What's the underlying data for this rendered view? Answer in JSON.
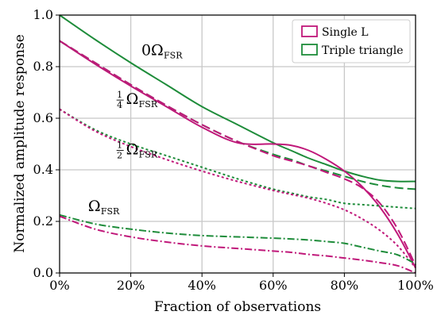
{
  "chart_data": {
    "type": "line",
    "xlabel": "Fraction of observations",
    "ylabel": "Normalized amplitude response",
    "xlim": [
      0,
      100
    ],
    "ylim": [
      0,
      1.0
    ],
    "x_tick_labels": [
      "0%",
      "20%",
      "40%",
      "60%",
      "80%",
      "100%"
    ],
    "x_ticks": [
      0,
      20,
      40,
      60,
      80,
      100
    ],
    "y_tick_labels": [
      "0.0",
      "0.2",
      "0.4",
      "0.6",
      "0.8",
      "1.0"
    ],
    "y_ticks": [
      0,
      0.2,
      0.4,
      0.6,
      0.8,
      1.0
    ],
    "grid": true,
    "legend_position": "top-right",
    "legend": [
      {
        "label": "Single L",
        "color": "#c0187a"
      },
      {
        "label": "Triple triangle",
        "color": "#1e8c3a"
      }
    ],
    "annotations": [
      {
        "prefix": "0",
        "omega": "Ω",
        "subscript": "FSR",
        "x": 23,
        "y": 0.845
      },
      {
        "frac_num": "1",
        "frac_den": "4",
        "omega": "Ω",
        "subscript": "FSR",
        "x": 16,
        "y": 0.655
      },
      {
        "frac_num": "1",
        "frac_den": "2",
        "omega": "Ω",
        "subscript": "FSR",
        "x": 16,
        "y": 0.46
      },
      {
        "prefix": "",
        "omega": "Ω",
        "subscript": "FSR",
        "x": 8,
        "y": 0.24
      }
    ],
    "x": [
      0,
      10,
      20,
      30,
      40,
      50,
      60,
      65,
      70,
      75,
      80,
      85,
      90,
      95,
      100
    ],
    "series": [
      {
        "group": "Triple triangle",
        "style": "solid",
        "color": "#1e8c3a",
        "values": [
          1.0,
          0.905,
          0.815,
          0.73,
          0.645,
          0.575,
          0.505,
          0.475,
          0.445,
          0.42,
          0.395,
          0.375,
          0.36,
          0.355,
          0.355
        ]
      },
      {
        "group": "Single L",
        "style": "solid",
        "color": "#c0187a",
        "values": [
          0.9,
          0.81,
          0.725,
          0.645,
          0.565,
          0.505,
          0.5,
          0.495,
          0.475,
          0.44,
          0.395,
          0.335,
          0.255,
          0.15,
          0.02
        ]
      },
      {
        "group": "Triple triangle",
        "style": "dashed",
        "color": "#1e8c3a",
        "values": [
          0.9,
          0.815,
          0.73,
          0.65,
          0.575,
          0.51,
          0.46,
          0.44,
          0.415,
          0.395,
          0.375,
          0.355,
          0.34,
          0.33,
          0.325
        ]
      },
      {
        "group": "Single L",
        "style": "dashed",
        "color": "#c0187a",
        "values": [
          0.9,
          0.815,
          0.73,
          0.65,
          0.575,
          0.51,
          0.455,
          0.435,
          0.415,
          0.39,
          0.365,
          0.33,
          0.27,
          0.17,
          0.03
        ]
      },
      {
        "group": "Triple triangle",
        "style": "dotted",
        "color": "#1e8c3a",
        "values": [
          0.635,
          0.555,
          0.5,
          0.455,
          0.41,
          0.365,
          0.325,
          0.31,
          0.295,
          0.285,
          0.27,
          0.265,
          0.26,
          0.255,
          0.25
        ]
      },
      {
        "group": "Single L",
        "style": "dotted",
        "color": "#c0187a",
        "values": [
          0.635,
          0.55,
          0.49,
          0.44,
          0.395,
          0.355,
          0.32,
          0.305,
          0.29,
          0.27,
          0.245,
          0.21,
          0.165,
          0.105,
          0.02
        ]
      },
      {
        "group": "Triple triangle",
        "style": "dashdot",
        "color": "#1e8c3a",
        "values": [
          0.225,
          0.19,
          0.17,
          0.155,
          0.145,
          0.14,
          0.135,
          0.132,
          0.128,
          0.122,
          0.115,
          0.1,
          0.085,
          0.07,
          0.035
        ]
      },
      {
        "group": "Single L",
        "style": "dashdot",
        "color": "#c0187a",
        "values": [
          0.22,
          0.17,
          0.14,
          0.12,
          0.105,
          0.095,
          0.085,
          0.08,
          0.072,
          0.066,
          0.058,
          0.05,
          0.04,
          0.028,
          0.0
        ]
      }
    ]
  }
}
